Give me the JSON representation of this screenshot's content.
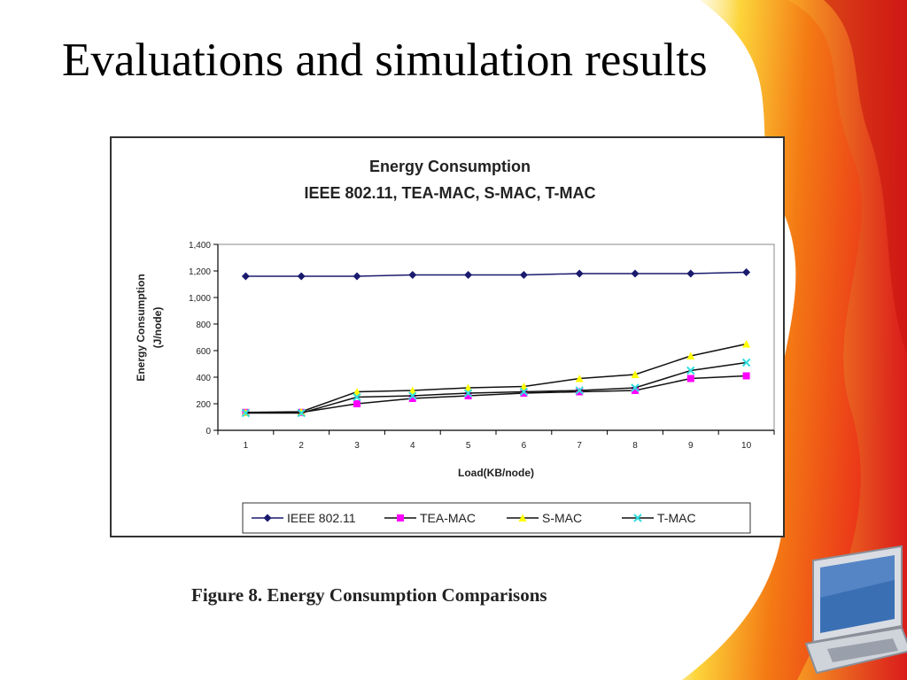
{
  "slide": {
    "title": "Evaluations and simulation results",
    "caption": "Figure 8.  Energy Consumption Comparisons"
  },
  "theme": {
    "flame_red": "#e8231a",
    "flame_orange": "#f47a14",
    "flame_yellow": "#fcd53a",
    "laptop_screen": "#3a6fb4"
  },
  "chart_data": {
    "type": "line",
    "title": "Energy Consumption",
    "subtitle": "IEEE 802.11, TEA-MAC, S-MAC, T-MAC",
    "xlabel": "Load(KB/node)",
    "ylabel": [
      "Energy Consumption",
      "(J/node)"
    ],
    "categories": [
      "1",
      "2",
      "3",
      "4",
      "5",
      "6",
      "7",
      "8",
      "9",
      "10"
    ],
    "ylim": [
      0,
      1400
    ],
    "yticks": [
      0,
      200,
      400,
      600,
      800,
      1000,
      1200,
      1400
    ],
    "ytick_labels": [
      "0",
      "200",
      "400",
      "600",
      "800",
      "1,000",
      "1,200",
      "1,400"
    ],
    "grid": false,
    "legend_position": "bottom",
    "series": [
      {
        "name": "IEEE 802.11",
        "color": "#1a1a6e",
        "marker": "diamond",
        "values": [
          1160,
          1160,
          1160,
          1170,
          1170,
          1170,
          1180,
          1180,
          1180,
          1190
        ]
      },
      {
        "name": "TEA-MAC",
        "color": "#ff00ff",
        "marker": "square",
        "values": [
          135,
          135,
          200,
          240,
          260,
          280,
          290,
          300,
          390,
          410
        ]
      },
      {
        "name": "S-MAC",
        "color": "#ffff00",
        "marker": "triangle",
        "values": [
          135,
          140,
          290,
          300,
          320,
          330,
          390,
          420,
          560,
          650
        ]
      },
      {
        "name": "T-MAC",
        "color": "#33dddd",
        "marker": "x",
        "values": [
          130,
          130,
          250,
          260,
          280,
          290,
          300,
          320,
          450,
          510
        ]
      }
    ]
  }
}
